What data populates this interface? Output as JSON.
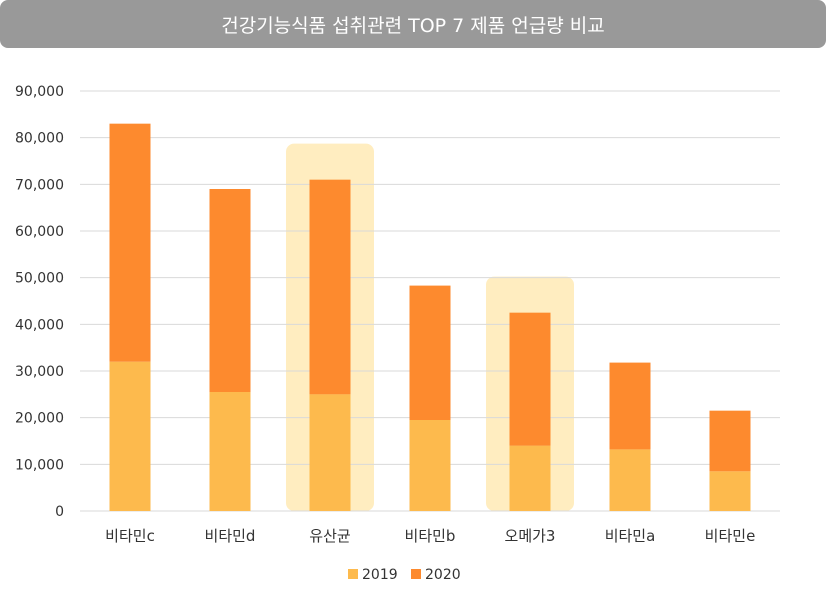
{
  "colors": {
    "series_2019": "#FDBA4D",
    "series_2020": "#FD8A2E",
    "highlight": "#FFEDC0",
    "gridline": "#D9D9D9",
    "title_bg": "#999999"
  },
  "chart_data": {
    "type": "bar",
    "stacked": true,
    "title": "건강기능식품 섭취관련 TOP 7 제품 언급량 비교",
    "xlabel": "",
    "ylabel": "",
    "ylim": [
      0,
      90000
    ],
    "y_ticks": [
      "0",
      "10,000",
      "20,000",
      "30,000",
      "40,000",
      "50,000",
      "60,000",
      "70,000",
      "80,000",
      "90,000"
    ],
    "y_tick_values": [
      0,
      10000,
      20000,
      30000,
      40000,
      50000,
      60000,
      70000,
      80000,
      90000
    ],
    "grid": true,
    "legend_position": "bottom-center",
    "categories": [
      "비타민c",
      "비타민d",
      "유산균",
      "비타민b",
      "오메가3",
      "비타민a",
      "비타민e"
    ],
    "highlighted_categories": [
      "유산균",
      "오메가3"
    ],
    "series": [
      {
        "name": "2019",
        "values": [
          32000,
          25500,
          25000,
          19500,
          14000,
          13200,
          8500
        ]
      },
      {
        "name": "2020",
        "values": [
          51000,
          43500,
          46000,
          28800,
          28500,
          18600,
          13000
        ]
      }
    ]
  }
}
